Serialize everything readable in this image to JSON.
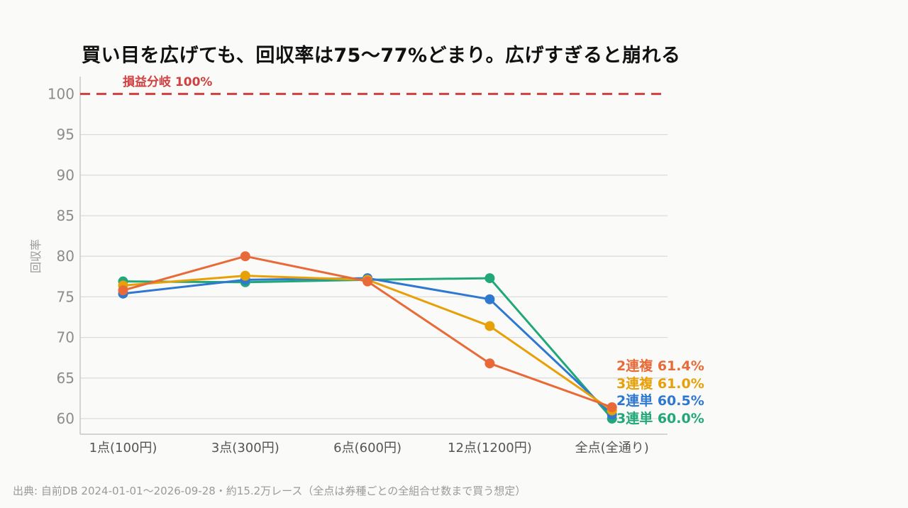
{
  "title": "買い目を広げても、回収率は75〜77%どまり。広げすぎると崩れる",
  "source": "出典: 自前DB 2024-01-01〜2026-09-28・約15.2万レース（全点は券種ごとの全組合せ数まで買う想定）",
  "chart_data": {
    "type": "line",
    "ylabel": "回収率",
    "ylim": [
      58,
      102
    ],
    "yticks": [
      60,
      65,
      70,
      75,
      80,
      85,
      90,
      95,
      100
    ],
    "grid": true,
    "categories": [
      "1点(100円)",
      "3点(300円)",
      "6点(600円)",
      "12点(1200円)",
      "全点(全通り)"
    ],
    "reference_line": {
      "value": 100,
      "label": "損益分岐 100%",
      "color": "#d04040"
    },
    "series": [
      {
        "name": "3連単",
        "end_label": "3連単 60.0%",
        "color": "#22a878",
        "values": [
          76.9,
          76.8,
          77.1,
          77.3,
          60.0
        ]
      },
      {
        "name": "2連単",
        "end_label": "2連単 60.5%",
        "color": "#2f78d0",
        "values": [
          75.4,
          77.1,
          77.3,
          74.7,
          60.5
        ]
      },
      {
        "name": "3連複",
        "end_label": "3連複 61.0%",
        "color": "#e8a008",
        "values": [
          76.4,
          77.6,
          77.1,
          71.4,
          61.0
        ]
      },
      {
        "name": "2連複",
        "end_label": "2連複 61.4%",
        "color": "#e86a38",
        "values": [
          75.8,
          80.0,
          76.9,
          66.8,
          61.4
        ]
      }
    ]
  }
}
